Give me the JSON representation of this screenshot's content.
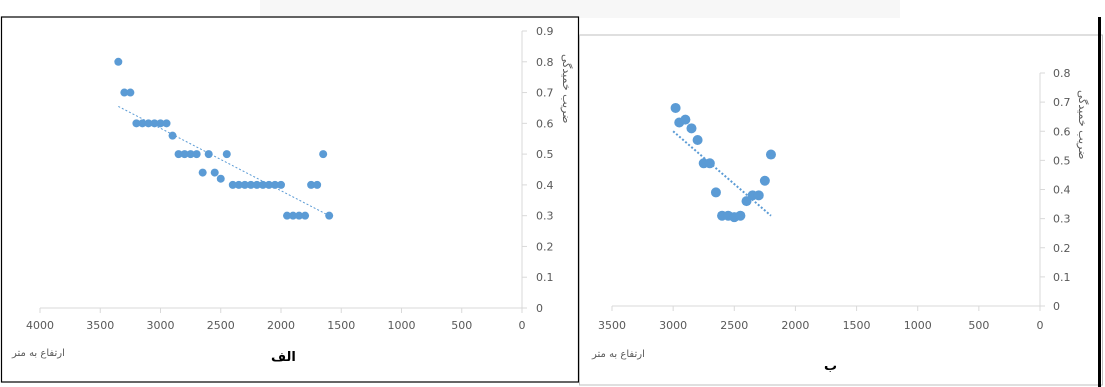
{
  "chart_data": [
    {
      "type": "scatter",
      "panel_label": "الف",
      "xlabel": "ارتفاع به متر",
      "ylabel": "ضریب خمیدگی",
      "xlim": [
        4000,
        0
      ],
      "ylim": [
        0,
        0.9
      ],
      "x_ticks": [
        4000,
        3500,
        3000,
        2500,
        2000,
        1500,
        1000,
        500,
        0
      ],
      "y_ticks": [
        0,
        0.1,
        0.2,
        0.3,
        0.4,
        0.5,
        0.6,
        0.7,
        0.8,
        0.9
      ],
      "points": [
        [
          3350,
          0.8
        ],
        [
          3300,
          0.7
        ],
        [
          3250,
          0.7
        ],
        [
          3200,
          0.6
        ],
        [
          3150,
          0.6
        ],
        [
          3100,
          0.6
        ],
        [
          3050,
          0.6
        ],
        [
          3000,
          0.6
        ],
        [
          2950,
          0.6
        ],
        [
          2900,
          0.56
        ],
        [
          2850,
          0.5
        ],
        [
          2800,
          0.5
        ],
        [
          2750,
          0.5
        ],
        [
          2700,
          0.5
        ],
        [
          2600,
          0.5
        ],
        [
          2450,
          0.5
        ],
        [
          2650,
          0.44
        ],
        [
          2550,
          0.44
        ],
        [
          2500,
          0.42
        ],
        [
          2400,
          0.4
        ],
        [
          2350,
          0.4
        ],
        [
          2300,
          0.4
        ],
        [
          2250,
          0.4
        ],
        [
          2200,
          0.4
        ],
        [
          2150,
          0.4
        ],
        [
          2100,
          0.4
        ],
        [
          2050,
          0.4
        ],
        [
          2000,
          0.4
        ],
        [
          1750,
          0.4
        ],
        [
          1700,
          0.4
        ],
        [
          1650,
          0.5
        ],
        [
          1950,
          0.3
        ],
        [
          1900,
          0.3
        ],
        [
          1850,
          0.3
        ],
        [
          1800,
          0.3
        ],
        [
          1600,
          0.3
        ]
      ],
      "trendline": {
        "from": [
          3350,
          0.655
        ],
        "to": [
          1600,
          0.3
        ],
        "style": "dotted"
      }
    },
    {
      "type": "scatter",
      "panel_label": "ب",
      "xlabel": "ارتفاع به متر",
      "ylabel": "ضریب خمیدگی",
      "xlim": [
        3500,
        0
      ],
      "ylim": [
        0,
        0.8
      ],
      "x_ticks": [
        3500,
        3000,
        2500,
        2000,
        1500,
        1000,
        500,
        0
      ],
      "y_ticks": [
        0,
        0.1,
        0.2,
        0.3,
        0.4,
        0.5,
        0.6,
        0.7,
        0.8
      ],
      "points": [
        [
          2980,
          0.68
        ],
        [
          2950,
          0.63
        ],
        [
          2900,
          0.64
        ],
        [
          2850,
          0.61
        ],
        [
          2800,
          0.57
        ],
        [
          2750,
          0.49
        ],
        [
          2700,
          0.49
        ],
        [
          2650,
          0.39
        ],
        [
          2600,
          0.31
        ],
        [
          2550,
          0.31
        ],
        [
          2500,
          0.305
        ],
        [
          2450,
          0.31
        ],
        [
          2400,
          0.36
        ],
        [
          2350,
          0.38
        ],
        [
          2300,
          0.38
        ],
        [
          2250,
          0.43
        ],
        [
          2200,
          0.52
        ]
      ],
      "trendline": {
        "from": [
          3000,
          0.6
        ],
        "to": [
          2200,
          0.31
        ],
        "style": "dotted"
      }
    }
  ]
}
